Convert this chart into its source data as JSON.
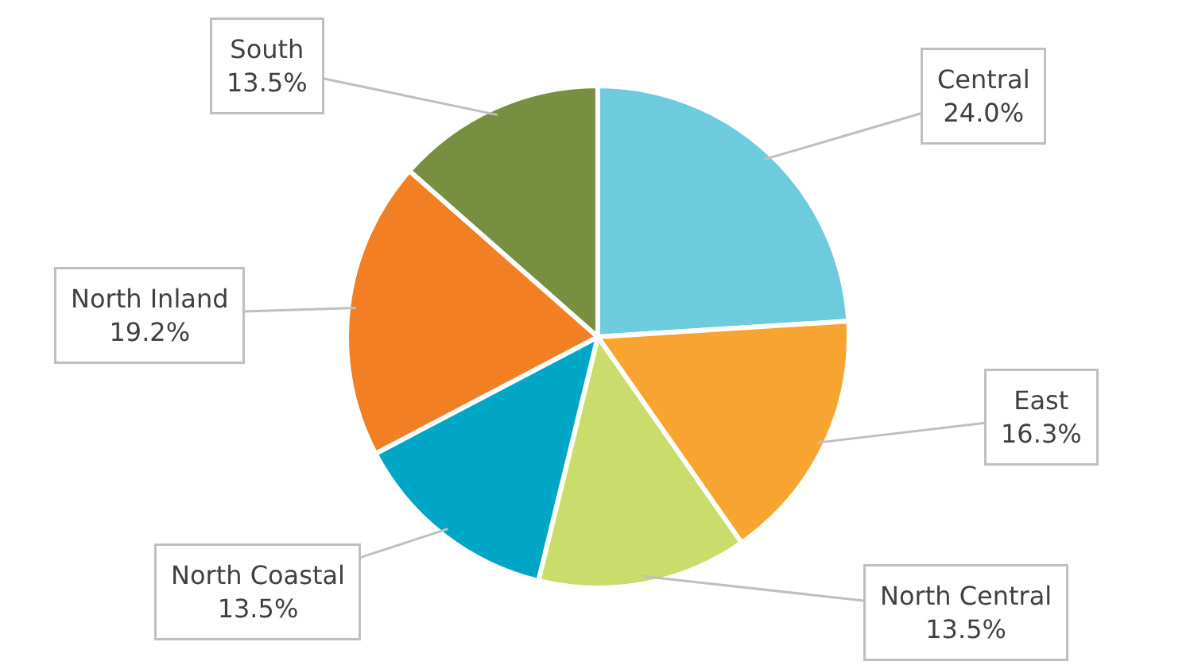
{
  "chart_data": {
    "type": "pie",
    "categories": [
      "Central",
      "East",
      "North Central",
      "North Coastal",
      "North Inland",
      "South"
    ],
    "values": [
      24.0,
      16.3,
      13.5,
      13.5,
      19.2,
      13.5
    ],
    "value_labels": [
      "24.0%",
      "16.3%",
      "13.5%",
      "13.5%",
      "19.2%",
      "13.5%"
    ],
    "colors": [
      "#6ecbdd",
      "#f8a431",
      "#c9dc6c",
      "#00a6c6",
      "#f27f24",
      "#788f41"
    ],
    "legend": false
  }
}
